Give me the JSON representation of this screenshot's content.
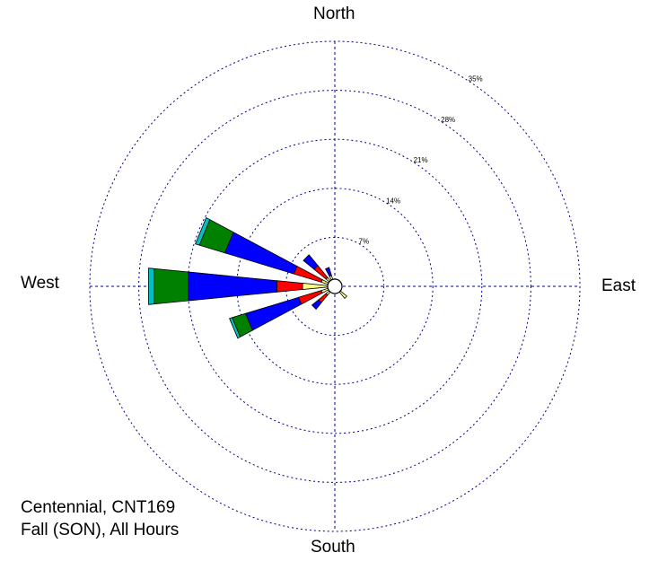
{
  "directions": {
    "north": "North",
    "south": "South",
    "west": "West",
    "east": "East"
  },
  "caption": {
    "line1": "Centennial, CNT169",
    "line2": "Fall (SON), All Hours"
  },
  "chart_data": {
    "type": "wind-rose",
    "rings": [
      {
        "value": 7,
        "label": "7%"
      },
      {
        "value": 14,
        "label": "14%"
      },
      {
        "value": 21,
        "label": "21%"
      },
      {
        "value": 28,
        "label": "28%"
      },
      {
        "value": 35,
        "label": "35%"
      }
    ],
    "colors": {
      "seg1": "#ffff80",
      "seg2": "#ff0000",
      "seg3": "#0000ff",
      "seg4": "#008000",
      "seg5": "#00c0c0"
    },
    "grid": true,
    "petals": [
      {
        "direction_deg": 270,
        "segments": [
          {
            "value": 3.6,
            "color": "seg1"
          },
          {
            "value": 3.7,
            "color": "seg2"
          },
          {
            "value": 12.7,
            "color": "seg3"
          },
          {
            "value": 4.9,
            "color": "seg4"
          },
          {
            "value": 0.8,
            "color": "seg5"
          }
        ]
      },
      {
        "direction_deg": 292.5,
        "segments": [
          {
            "value": 1.0,
            "color": "seg1"
          },
          {
            "value": 4.1,
            "color": "seg2"
          },
          {
            "value": 10.3,
            "color": "seg3"
          },
          {
            "value": 3.8,
            "color": "seg4"
          },
          {
            "value": 0.6,
            "color": "seg5"
          }
        ]
      },
      {
        "direction_deg": 247.5,
        "segments": [
          {
            "value": 1.0,
            "color": "seg1"
          },
          {
            "value": 3.4,
            "color": "seg2"
          },
          {
            "value": 7.9,
            "color": "seg3"
          },
          {
            "value": 2.0,
            "color": "seg4"
          },
          {
            "value": 0.4,
            "color": "seg5"
          }
        ]
      },
      {
        "direction_deg": 315,
        "segments": [
          {
            "value": 0.6,
            "color": "seg1"
          },
          {
            "value": 2.2,
            "color": "seg2"
          },
          {
            "value": 2.0,
            "color": "seg3"
          }
        ]
      },
      {
        "direction_deg": 225,
        "segments": [
          {
            "value": 0.6,
            "color": "seg1"
          },
          {
            "value": 1.4,
            "color": "seg2"
          },
          {
            "value": 1.2,
            "color": "seg3"
          }
        ]
      },
      {
        "direction_deg": 337.5,
        "segments": [
          {
            "value": 0.6,
            "color": "seg1"
          },
          {
            "value": 1.2,
            "color": "seg3"
          }
        ]
      },
      {
        "direction_deg": 135,
        "segments": [
          {
            "value": 1.2,
            "color": "seg1"
          }
        ]
      }
    ]
  }
}
